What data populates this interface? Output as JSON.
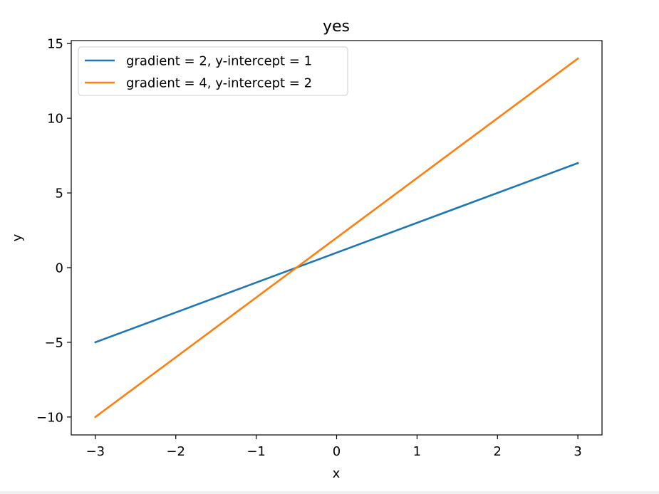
{
  "chart_data": {
    "type": "line",
    "title": "yes",
    "xlabel": "x",
    "ylabel": "y",
    "xlim": [
      -3.3,
      3.3
    ],
    "ylim": [
      -11.2,
      15.2
    ],
    "xticks": [
      -3,
      -2,
      -1,
      0,
      1,
      2,
      3
    ],
    "xtick_labels": [
      "−3",
      "−2",
      "−1",
      "0",
      "1",
      "2",
      "3"
    ],
    "yticks": [
      -10,
      -5,
      0,
      5,
      10,
      15
    ],
    "ytick_labels": [
      "−10",
      "−5",
      "0",
      "5",
      "10",
      "15"
    ],
    "grid": false,
    "legend_position": "upper-left",
    "series": [
      {
        "name": "gradient = 2, y-intercept = 1",
        "color": "#1f77b4",
        "x": [
          -3,
          3
        ],
        "y": [
          -5,
          7
        ]
      },
      {
        "name": "gradient = 4, y-intercept = 2",
        "color": "#ff7f0e",
        "x": [
          -3,
          3
        ],
        "y": [
          -10,
          14
        ]
      }
    ]
  }
}
